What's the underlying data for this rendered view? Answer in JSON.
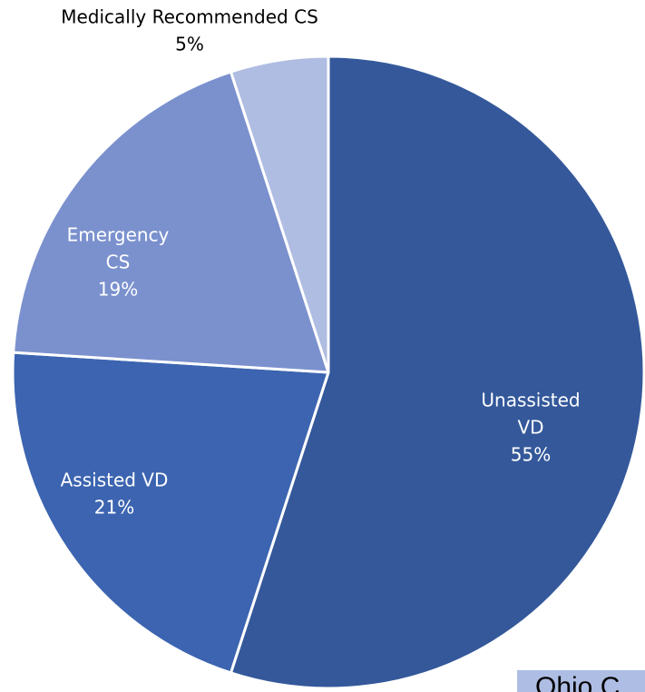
{
  "chart_data": {
    "type": "pie",
    "title": "",
    "start_angle_deg": 0,
    "direction": "clockwise",
    "slices": [
      {
        "label_lines": [
          "Unassisted",
          "VD"
        ],
        "percent_text": "55%",
        "value": 55,
        "color": "#34589a",
        "label_color": "#ffffff",
        "label_position": "inside"
      },
      {
        "label_lines": [
          "Assisted VD"
        ],
        "percent_text": "21%",
        "value": 21,
        "color": "#3c64b0",
        "label_color": "#ffffff",
        "label_position": "inside"
      },
      {
        "label_lines": [
          "Emergency",
          "CS"
        ],
        "percent_text": "19%",
        "value": 19,
        "color": "#7b91ce",
        "label_color": "#ffffff",
        "label_position": "inside"
      },
      {
        "label_lines": [
          "Medically Recommended CS"
        ],
        "percent_text": "5%",
        "value": 5,
        "color": "#b0bde2",
        "label_color": "#000000",
        "label_position": "outside-top"
      }
    ]
  },
  "corner_tag": {
    "text": "Ohio C",
    "color": "#aebde3"
  }
}
